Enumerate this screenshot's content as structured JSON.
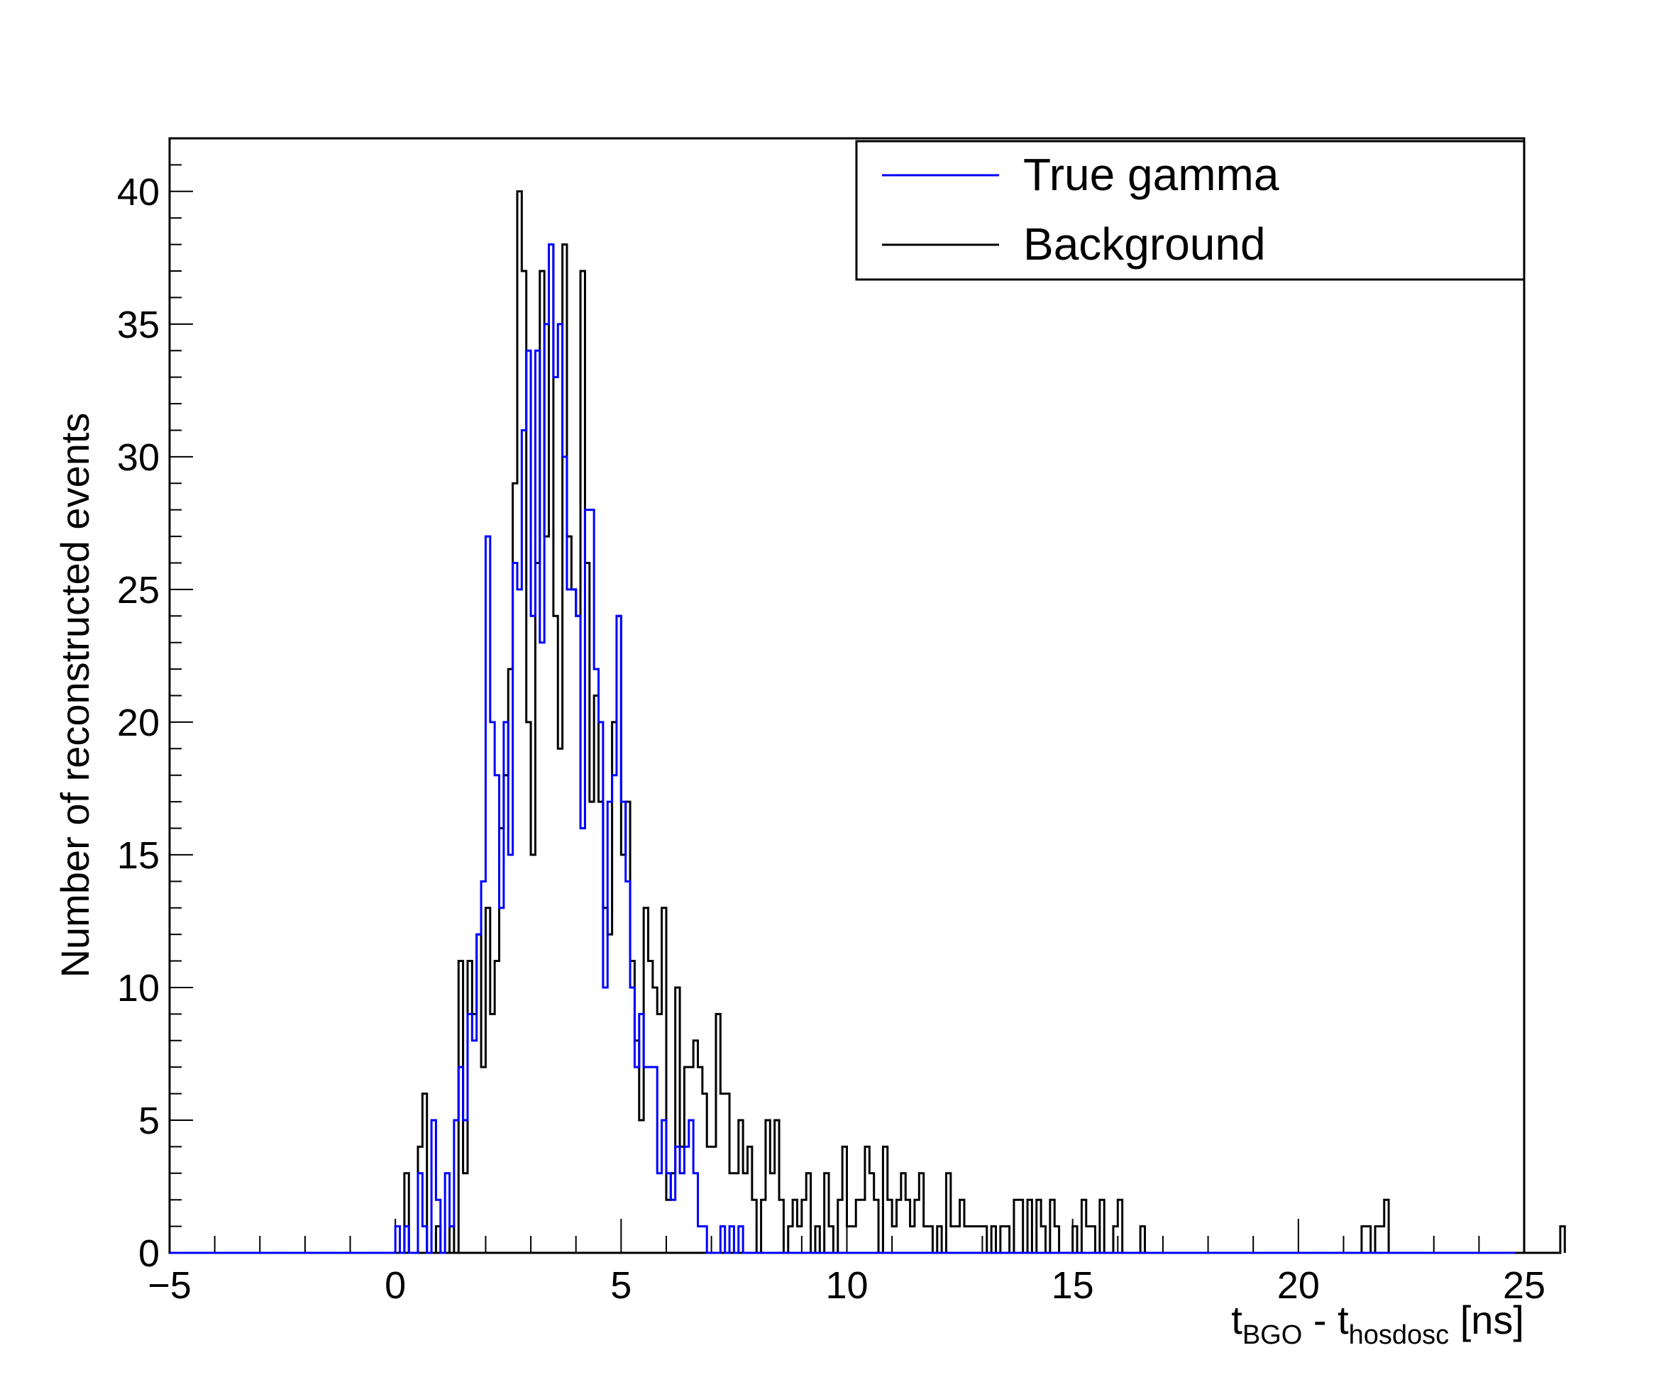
{
  "chart_data": {
    "type": "histogram",
    "title": "",
    "xlabel": {
      "main": "t",
      "sub1": "BGO",
      "mid": " - t",
      "sub2": "hosdosc",
      "tail": " [ns]"
    },
    "ylabel": "Number of reconstructed events",
    "xlim": [
      -5,
      25
    ],
    "ylim": [
      0,
      42
    ],
    "grid": false,
    "x_ticks": [
      -5,
      0,
      5,
      10,
      15,
      20,
      25
    ],
    "x_tick_labels": [
      "−5",
      "0",
      "5",
      "10",
      "15",
      "20",
      "25"
    ],
    "y_ticks": [
      0,
      5,
      10,
      15,
      20,
      25,
      30,
      35,
      40
    ],
    "y_tick_labels": [
      "0",
      "5",
      "10",
      "15",
      "20",
      "25",
      "30",
      "35",
      "40"
    ],
    "legend": {
      "position": "top-right",
      "entries": [
        "True gamma",
        "Background"
      ]
    },
    "bin_width": 0.1,
    "series": [
      {
        "name": "True gamma",
        "color": "#0000ff",
        "x_start": 0.0,
        "counts": [
          1,
          0,
          1,
          0,
          0,
          3,
          1,
          0,
          5,
          2,
          0,
          3,
          1,
          5,
          7,
          5,
          9,
          8,
          12,
          14,
          27,
          20,
          18,
          13,
          20,
          15,
          26,
          25,
          31,
          34,
          24,
          34,
          23,
          35,
          38,
          33,
          35,
          30,
          25,
          25,
          24,
          16,
          28,
          28,
          22,
          20,
          10,
          17,
          18,
          24,
          17,
          14,
          10,
          7,
          9,
          7,
          7,
          7,
          3,
          5,
          3,
          2,
          4,
          3,
          4,
          5,
          3,
          1,
          1,
          0,
          0,
          0,
          1,
          0,
          1,
          0,
          1,
          0,
          0,
          0,
          0,
          0,
          0,
          0,
          0,
          0,
          0,
          0,
          0,
          0,
          0,
          0,
          0,
          0,
          0,
          0,
          0,
          0,
          0,
          0,
          0,
          0,
          0,
          0,
          0,
          0,
          0,
          0,
          0,
          0,
          0,
          0,
          0,
          0,
          0,
          0,
          0,
          0,
          0,
          0,
          0,
          0,
          0,
          0,
          0,
          0,
          0,
          0,
          0,
          0,
          0,
          0,
          0,
          0,
          0,
          0,
          0,
          0,
          0,
          0,
          0,
          0,
          0,
          0,
          0,
          0,
          0,
          0,
          0,
          0,
          0,
          0,
          0,
          0,
          0,
          0,
          0,
          0,
          0,
          0,
          0,
          0,
          0,
          0,
          0,
          0,
          0,
          0,
          0,
          0,
          0,
          0,
          0,
          0,
          0,
          0,
          0,
          0,
          0,
          0,
          0,
          0,
          0,
          0,
          0,
          0,
          0,
          0,
          0,
          0,
          0,
          0,
          0,
          0,
          0,
          0,
          0,
          0,
          0,
          0,
          0,
          0,
          0,
          0,
          0,
          0,
          0,
          0,
          0,
          0,
          0,
          0,
          0,
          0,
          0,
          0,
          0,
          0,
          0,
          0,
          0,
          0,
          0,
          0,
          0,
          0,
          0,
          0,
          0,
          0,
          0,
          0,
          0,
          0,
          0,
          0,
          0,
          0,
          0,
          0,
          0,
          0,
          0,
          0,
          0,
          0,
          0,
          0
        ]
      },
      {
        "name": "Background",
        "color": "#000000",
        "x_start": 0.0,
        "counts": [
          0,
          0,
          3,
          0,
          0,
          4,
          6,
          0,
          0,
          1,
          0,
          0,
          1,
          0,
          11,
          3,
          11,
          9,
          12,
          7,
          13,
          9,
          11,
          16,
          18,
          22,
          29,
          40,
          37,
          20,
          15,
          26,
          37,
          27,
          38,
          24,
          19,
          38,
          27,
          25,
          24,
          37,
          26,
          17,
          21,
          17,
          13,
          12,
          20,
          24,
          15,
          17,
          11,
          8,
          5,
          13,
          11,
          10,
          9,
          13,
          2,
          3,
          10,
          4,
          7,
          7,
          8,
          7,
          6,
          4,
          4,
          9,
          6,
          6,
          3,
          3,
          5,
          3,
          4,
          2,
          0,
          2,
          5,
          3,
          5,
          2,
          0,
          1,
          2,
          1,
          2,
          3,
          0,
          1,
          0,
          3,
          1,
          0,
          2,
          4,
          1,
          1,
          2,
          2,
          4,
          3,
          2,
          0,
          4,
          2,
          1,
          2,
          3,
          2,
          1,
          2,
          3,
          1,
          1,
          0,
          1,
          0,
          3,
          1,
          1,
          2,
          1,
          1,
          1,
          1,
          1,
          0,
          1,
          0,
          1,
          1,
          0,
          2,
          2,
          0,
          2,
          0,
          2,
          1,
          0,
          2,
          1,
          0,
          0,
          0,
          1,
          0,
          2,
          1,
          1,
          0,
          2,
          0,
          0,
          1,
          2,
          0,
          0,
          0,
          0,
          1,
          0,
          0,
          0,
          0,
          0,
          0,
          0,
          0,
          0,
          0,
          0,
          0,
          0,
          0,
          0,
          0,
          0,
          0,
          0,
          0,
          0,
          0,
          0,
          0,
          0,
          0,
          0,
          0,
          0,
          0,
          0,
          0,
          0,
          0,
          0,
          0,
          0,
          0,
          0,
          0,
          0,
          0,
          0,
          0,
          0,
          0,
          0,
          0,
          1,
          1,
          0,
          1,
          1,
          2,
          0,
          0,
          0,
          0,
          0,
          0,
          0,
          0,
          0,
          0,
          0,
          0,
          0,
          0,
          0,
          0,
          0,
          0,
          0,
          0,
          0,
          0,
          0,
          0,
          0,
          0,
          0,
          0,
          0,
          0,
          0,
          0,
          0,
          0,
          0,
          0,
          0,
          0,
          1
        ]
      }
    ]
  }
}
